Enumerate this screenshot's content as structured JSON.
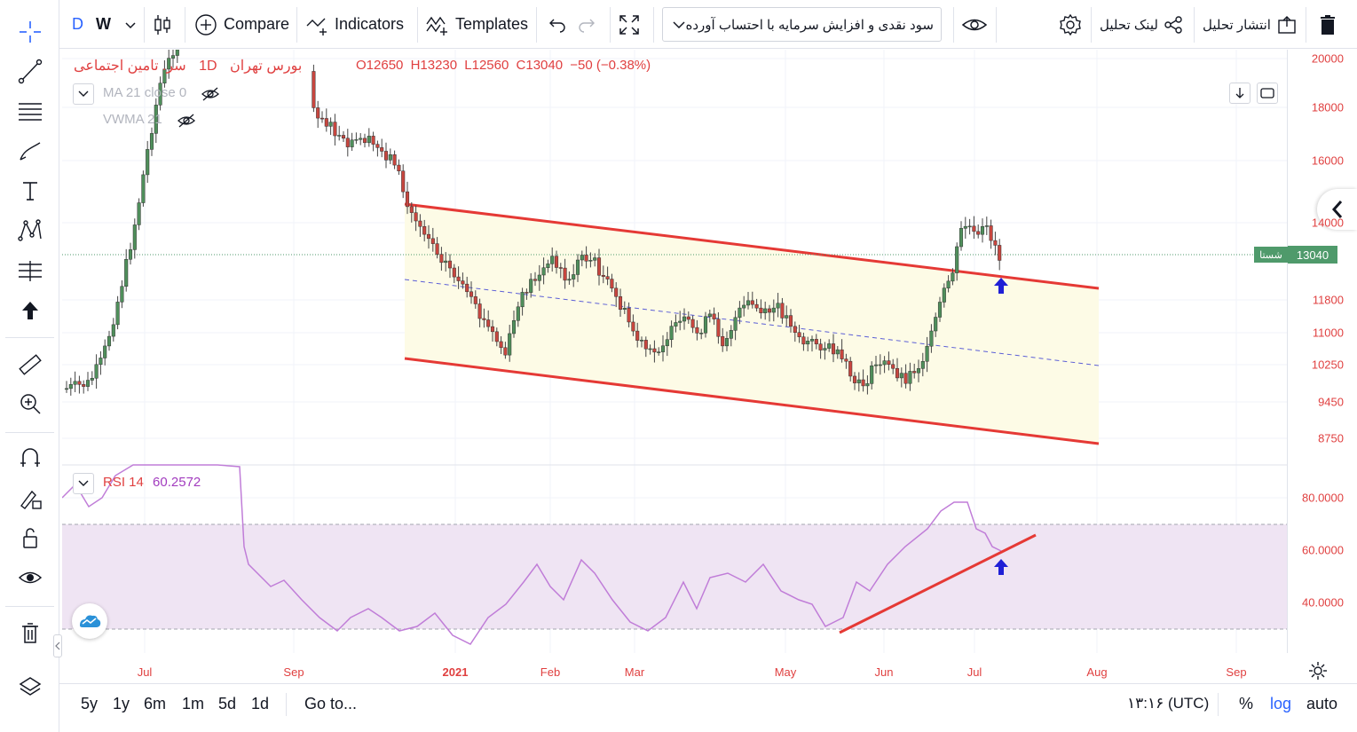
{
  "toolbar": {
    "interval_d": "D",
    "interval_w": "W",
    "compare_label": "Compare",
    "indicators_label": "Indicators",
    "templates_label": "Templates",
    "layout_title": "سود نقدی و افزایش سرمایه با احتساب آورده",
    "share_link_label": "لینک تحلیل",
    "publish_label": "انتشار تحلیل"
  },
  "legend": {
    "symbol": "سر. تامین اجتماعی",
    "interval": "1D",
    "exchange": "بورس تهران",
    "open": "O12650",
    "high": "H13230",
    "low": "L12560",
    "close": "C13040",
    "change": "−50 (−0.38%)",
    "ma_label": "MA 21 close 0",
    "vwma_label": "VWMA 21",
    "rsi_label": "RSI 14",
    "rsi_value": "60.2572"
  },
  "price_scale": {
    "labels": [
      "20000",
      "18000",
      "16000",
      "14000",
      "11800",
      "11000",
      "10250",
      "9450",
      "8750"
    ],
    "last_price": "13040",
    "last_price_tag": "شستا",
    "rsi_labels": [
      "80.0000",
      "60.0000",
      "40.0000"
    ]
  },
  "time_axis": {
    "labels": [
      "Jul",
      "Sep",
      "2021",
      "Feb",
      "Mar",
      "May",
      "Jun",
      "Jul",
      "Aug",
      "Sep"
    ]
  },
  "bottom_bar": {
    "ranges": [
      "5y",
      "1y",
      "6m",
      "1m",
      "5d",
      "1d"
    ],
    "goto_label": "Go to...",
    "time_label": "۱۳:۱۶ (UTC)",
    "percent_label": "%",
    "log_label": "log",
    "auto_label": "auto"
  },
  "colors": {
    "up": "#4f8f5b",
    "down": "#c8463f",
    "channel": "#e53935",
    "rsi_line": "#c07dd8",
    "rsi_band": "#efe4f3",
    "accent": "#2962ff",
    "last_price_bg": "#4f9a6b"
  }
}
